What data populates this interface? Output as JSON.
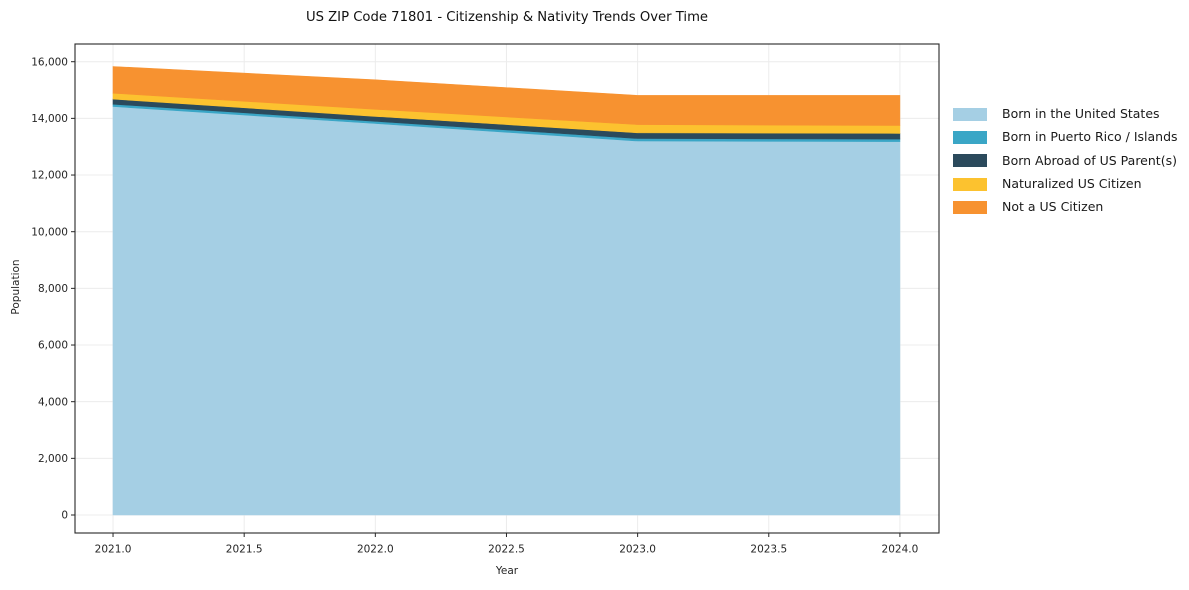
{
  "page": {
    "background": "#ffffff",
    "text_color": "#262626",
    "grid_color": "#ececec",
    "spine_color": "#262626"
  },
  "chart_data": {
    "type": "area",
    "stacked": true,
    "title": "US ZIP Code 71801 - Citizenship & Nativity Trends Over Time",
    "xlabel": "Year",
    "ylabel": "Population",
    "x": [
      2021,
      2022,
      2023,
      2024
    ],
    "series": [
      {
        "name": "Born in the United States",
        "color": "#a5cfe4",
        "values": [
          14420,
          13820,
          13200,
          13180
        ]
      },
      {
        "name": "Born in Puerto Rico / Islands",
        "color": "#3aa6c6",
        "values": [
          80,
          75,
          90,
          90
        ]
      },
      {
        "name": "Born Abroad of US Parent(s)",
        "color": "#2b4a5c",
        "values": [
          180,
          175,
          200,
          200
        ]
      },
      {
        "name": "Naturalized US Citizen",
        "color": "#fcc22f",
        "values": [
          210,
          250,
          290,
          280
        ]
      },
      {
        "name": "Not a US Citizen",
        "color": "#f79230",
        "values": [
          940,
          1040,
          1030,
          1060
        ]
      }
    ],
    "totals": [
      15830,
      15360,
      14810,
      14810
    ],
    "xticks": [
      2021.0,
      2021.5,
      2022.0,
      2022.5,
      2023.0,
      2023.5,
      2024.0
    ],
    "xtick_labels": [
      "2021.0",
      "2021.5",
      "2022.0",
      "2022.5",
      "2023.0",
      "2023.5",
      "2024.0"
    ],
    "yticks": [
      0,
      2000,
      4000,
      6000,
      8000,
      10000,
      12000,
      14000,
      16000
    ],
    "ytick_labels": [
      "0",
      "2,000",
      "4,000",
      "6,000",
      "8,000",
      "10,000",
      "12,000",
      "14,000",
      "16,000"
    ],
    "xlim": [
      2020.855,
      2024.149
    ],
    "ylim": [
      -635,
      16625
    ],
    "grid": true,
    "legend_position": "right"
  }
}
